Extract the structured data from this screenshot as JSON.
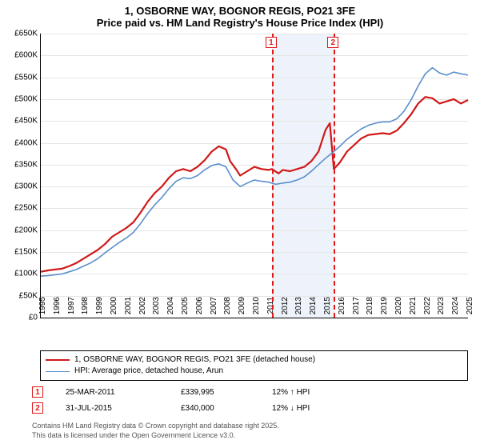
{
  "title_line1": "1, OSBORNE WAY, BOGNOR REGIS, PO21 3FE",
  "title_line2": "Price paid vs. HM Land Registry's House Price Index (HPI)",
  "chart": {
    "type": "line",
    "ylim": [
      0,
      650000
    ],
    "ytick_step": 50000,
    "ytick_labels": [
      "£0",
      "£50K",
      "£100K",
      "£150K",
      "£200K",
      "£250K",
      "£300K",
      "£350K",
      "£400K",
      "£450K",
      "£500K",
      "£550K",
      "£600K",
      "£650K"
    ],
    "xlim": [
      1995,
      2025
    ],
    "xtick_step": 1,
    "grid_color": "#e5e5e5",
    "background_color": "#ffffff",
    "highlight_band": {
      "from": 2011.23,
      "to": 2015.58,
      "color": "#eef3fb"
    },
    "sale_markers": [
      {
        "n": "1",
        "x": 2011.23,
        "color": "#e11919"
      },
      {
        "n": "2",
        "x": 2015.58,
        "color": "#e11919"
      }
    ],
    "series": [
      {
        "name": "price_paid",
        "label": "1, OSBORNE WAY, BOGNOR REGIS, PO21 3FE (detached house)",
        "color": "#d01818",
        "line_width": 2.2,
        "points": [
          [
            1995,
            105000
          ],
          [
            1995.5,
            108000
          ],
          [
            1996,
            110000
          ],
          [
            1996.5,
            112000
          ],
          [
            1997,
            118000
          ],
          [
            1997.5,
            125000
          ],
          [
            1998,
            135000
          ],
          [
            1998.5,
            145000
          ],
          [
            1999,
            155000
          ],
          [
            1999.5,
            168000
          ],
          [
            2000,
            185000
          ],
          [
            2000.5,
            195000
          ],
          [
            2001,
            205000
          ],
          [
            2001.5,
            218000
          ],
          [
            2002,
            240000
          ],
          [
            2002.5,
            265000
          ],
          [
            2003,
            285000
          ],
          [
            2003.5,
            300000
          ],
          [
            2004,
            320000
          ],
          [
            2004.5,
            335000
          ],
          [
            2005,
            340000
          ],
          [
            2005.5,
            335000
          ],
          [
            2006,
            345000
          ],
          [
            2006.5,
            360000
          ],
          [
            2007,
            380000
          ],
          [
            2007.5,
            392000
          ],
          [
            2008,
            385000
          ],
          [
            2008.3,
            358000
          ],
          [
            2008.7,
            340000
          ],
          [
            2009,
            325000
          ],
          [
            2009.5,
            335000
          ],
          [
            2010,
            345000
          ],
          [
            2010.5,
            340000
          ],
          [
            2011,
            338000
          ],
          [
            2011.23,
            339995
          ],
          [
            2011.7,
            330000
          ],
          [
            2012,
            338000
          ],
          [
            2012.5,
            335000
          ],
          [
            2013,
            340000
          ],
          [
            2013.5,
            345000
          ],
          [
            2014,
            358000
          ],
          [
            2014.5,
            380000
          ],
          [
            2015,
            430000
          ],
          [
            2015.3,
            445000
          ],
          [
            2015.58,
            340000
          ],
          [
            2016,
            355000
          ],
          [
            2016.5,
            380000
          ],
          [
            2017,
            395000
          ],
          [
            2017.5,
            410000
          ],
          [
            2018,
            418000
          ],
          [
            2018.5,
            420000
          ],
          [
            2019,
            422000
          ],
          [
            2019.5,
            420000
          ],
          [
            2020,
            428000
          ],
          [
            2020.5,
            445000
          ],
          [
            2021,
            465000
          ],
          [
            2021.5,
            490000
          ],
          [
            2022,
            505000
          ],
          [
            2022.5,
            502000
          ],
          [
            2023,
            490000
          ],
          [
            2023.5,
            495000
          ],
          [
            2024,
            500000
          ],
          [
            2024.5,
            490000
          ],
          [
            2025,
            498000
          ]
        ]
      },
      {
        "name": "hpi",
        "label": "HPI: Average price, detached house, Arun",
        "color": "#5a8ecb",
        "line_width": 1.6,
        "points": [
          [
            1995,
            95000
          ],
          [
            1995.5,
            96000
          ],
          [
            1996,
            98000
          ],
          [
            1996.5,
            100000
          ],
          [
            1997,
            105000
          ],
          [
            1997.5,
            110000
          ],
          [
            1998,
            118000
          ],
          [
            1998.5,
            125000
          ],
          [
            1999,
            135000
          ],
          [
            1999.5,
            148000
          ],
          [
            2000,
            160000
          ],
          [
            2000.5,
            172000
          ],
          [
            2001,
            182000
          ],
          [
            2001.5,
            195000
          ],
          [
            2002,
            215000
          ],
          [
            2002.5,
            238000
          ],
          [
            2003,
            258000
          ],
          [
            2003.5,
            275000
          ],
          [
            2004,
            295000
          ],
          [
            2004.5,
            312000
          ],
          [
            2005,
            320000
          ],
          [
            2005.5,
            318000
          ],
          [
            2006,
            325000
          ],
          [
            2006.5,
            338000
          ],
          [
            2007,
            348000
          ],
          [
            2007.5,
            352000
          ],
          [
            2008,
            345000
          ],
          [
            2008.5,
            315000
          ],
          [
            2009,
            300000
          ],
          [
            2009.5,
            308000
          ],
          [
            2010,
            315000
          ],
          [
            2010.5,
            312000
          ],
          [
            2011,
            310000
          ],
          [
            2011.5,
            305000
          ],
          [
            2012,
            308000
          ],
          [
            2012.5,
            310000
          ],
          [
            2013,
            315000
          ],
          [
            2013.5,
            322000
          ],
          [
            2014,
            335000
          ],
          [
            2014.5,
            350000
          ],
          [
            2015,
            365000
          ],
          [
            2015.5,
            378000
          ],
          [
            2016,
            392000
          ],
          [
            2016.5,
            408000
          ],
          [
            2017,
            420000
          ],
          [
            2017.5,
            432000
          ],
          [
            2018,
            440000
          ],
          [
            2018.5,
            445000
          ],
          [
            2019,
            448000
          ],
          [
            2019.5,
            448000
          ],
          [
            2020,
            455000
          ],
          [
            2020.5,
            472000
          ],
          [
            2021,
            498000
          ],
          [
            2021.5,
            530000
          ],
          [
            2022,
            558000
          ],
          [
            2022.5,
            572000
          ],
          [
            2023,
            560000
          ],
          [
            2023.5,
            555000
          ],
          [
            2024,
            562000
          ],
          [
            2024.5,
            558000
          ],
          [
            2025,
            555000
          ]
        ]
      }
    ]
  },
  "legend": {
    "rows": [
      {
        "color": "#d01818",
        "width": 2.2,
        "label": "1, OSBORNE WAY, BOGNOR REGIS, PO21 3FE (detached house)"
      },
      {
        "color": "#5a8ecb",
        "width": 1.6,
        "label": "HPI: Average price, detached house, Arun"
      }
    ]
  },
  "sales": [
    {
      "n": "1",
      "color": "#e11919",
      "date": "25-MAR-2011",
      "price": "£339,995",
      "delta": "12% ↑ HPI"
    },
    {
      "n": "2",
      "color": "#e11919",
      "date": "31-JUL-2015",
      "price": "£340,000",
      "delta": "12% ↓ HPI"
    }
  ],
  "license_line1": "Contains HM Land Registry data © Crown copyright and database right 2025.",
  "license_line2": "This data is licensed under the Open Government Licence v3.0."
}
